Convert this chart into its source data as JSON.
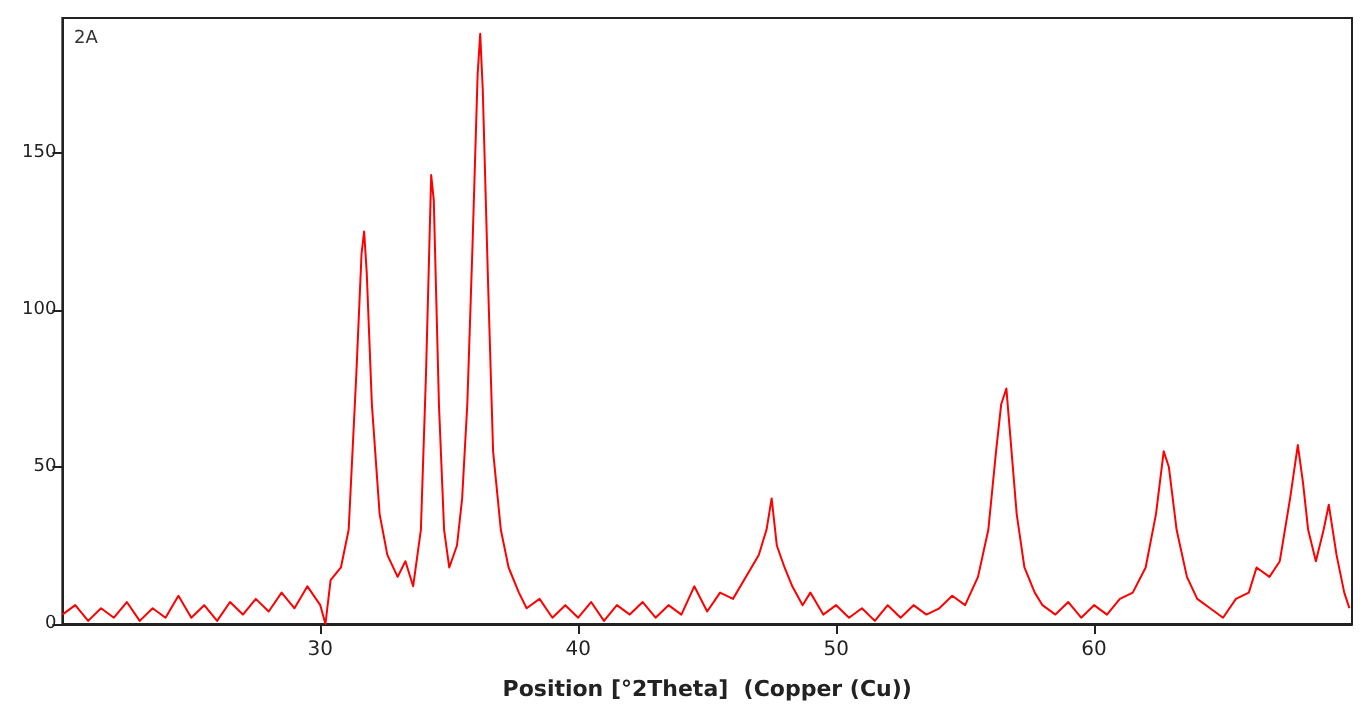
{
  "chart_data": {
    "type": "line",
    "title": "2A",
    "xlabel": "Position [°2Theta]  (Copper (Cu))",
    "xlim": [
      20,
      70
    ],
    "xticks": [
      30,
      40,
      50,
      60
    ],
    "ylim": [
      0,
      193
    ],
    "yticks": [
      0,
      50,
      100,
      150
    ],
    "marker": "none",
    "line_style": "solid",
    "series": [
      {
        "color": "#ff0000",
        "x": [
          20,
          20.5,
          21,
          21.5,
          22,
          22.5,
          23,
          23.5,
          24,
          24.5,
          25,
          25.5,
          26,
          26.5,
          27,
          27.5,
          28,
          28.5,
          29,
          29.5,
          30,
          30.2,
          30.4,
          30.8,
          31.1,
          31.4,
          31.6,
          31.7,
          31.8,
          32.0,
          32.3,
          32.6,
          33.0,
          33.3,
          33.6,
          33.9,
          34.1,
          34.3,
          34.4,
          34.6,
          34.8,
          35.0,
          35.3,
          35.5,
          35.7,
          35.9,
          36.1,
          36.2,
          36.3,
          36.5,
          36.7,
          37.0,
          37.3,
          37.7,
          38,
          38.5,
          39,
          39.5,
          40,
          40.5,
          41,
          41.5,
          42,
          42.5,
          43,
          43.5,
          44,
          44.5,
          45,
          45.5,
          46,
          46.5,
          47,
          47.3,
          47.5,
          47.7,
          48,
          48.3,
          48.7,
          49,
          49.5,
          50,
          50.5,
          51,
          51.5,
          52,
          52.5,
          53,
          53.5,
          54,
          54.5,
          55,
          55.5,
          55.9,
          56.2,
          56.4,
          56.6,
          56.8,
          57.0,
          57.3,
          57.7,
          58,
          58.5,
          59,
          59.5,
          60,
          60.5,
          61,
          61.5,
          62,
          62.4,
          62.7,
          62.9,
          63.2,
          63.6,
          64,
          64.5,
          65,
          65.5,
          66,
          66.3,
          66.8,
          67.2,
          67.6,
          67.9,
          68.1,
          68.3,
          68.6,
          68.9,
          69.1,
          69.4,
          69.7,
          69.9
        ],
        "values": [
          3,
          6,
          1,
          5,
          2,
          7,
          1,
          5,
          2,
          9,
          2,
          6,
          1,
          7,
          3,
          8,
          4,
          10,
          5,
          12,
          6,
          0,
          14,
          18,
          30,
          80,
          118,
          125,
          112,
          70,
          35,
          22,
          15,
          20,
          12,
          30,
          80,
          143,
          135,
          70,
          30,
          18,
          25,
          40,
          70,
          120,
          175,
          188,
          170,
          110,
          55,
          30,
          18,
          10,
          5,
          8,
          2,
          6,
          2,
          7,
          1,
          6,
          3,
          7,
          2,
          6,
          3,
          12,
          4,
          10,
          8,
          15,
          22,
          30,
          40,
          25,
          18,
          12,
          6,
          10,
          3,
          6,
          2,
          5,
          1,
          6,
          2,
          6,
          3,
          5,
          9,
          6,
          15,
          30,
          55,
          70,
          75,
          55,
          35,
          18,
          10,
          6,
          3,
          7,
          2,
          6,
          3,
          8,
          10,
          18,
          35,
          55,
          50,
          30,
          15,
          8,
          5,
          2,
          8,
          10,
          18,
          15,
          20,
          40,
          57,
          45,
          30,
          20,
          30,
          38,
          22,
          10,
          5
        ]
      }
    ]
  }
}
